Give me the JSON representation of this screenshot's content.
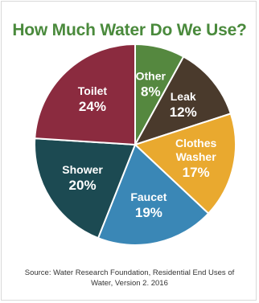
{
  "title": "How Much Water Do We Use?",
  "colors": {
    "title": "#4a8a3c"
  },
  "chart_data": {
    "type": "pie",
    "title": "How Much Water Do We Use?",
    "unit": "%",
    "slices": [
      {
        "label": "Other",
        "value": 8,
        "value_label": "8%",
        "color": "#55883f"
      },
      {
        "label": "Leak",
        "value": 12,
        "value_label": "12%",
        "color": "#4a3a2c"
      },
      {
        "label": "Clothes Washer",
        "label_lines": [
          "Clothes",
          "Washer"
        ],
        "value": 17,
        "value_label": "17%",
        "color": "#e9a92f"
      },
      {
        "label": "Faucet",
        "value": 19,
        "value_label": "19%",
        "color": "#3a87b6"
      },
      {
        "label": "Shower",
        "value": 20,
        "value_label": "20%",
        "color": "#1c4a52"
      },
      {
        "label": "Toilet",
        "value": 24,
        "value_label": "24%",
        "color": "#8b2b3f"
      }
    ],
    "start": "top, clockwise",
    "legend": "none (labels on slices)"
  },
  "source": {
    "line1": "Source: Water Research Foundation, Residential End  Uses of",
    "line2": "Water, Version 2. 2016"
  }
}
